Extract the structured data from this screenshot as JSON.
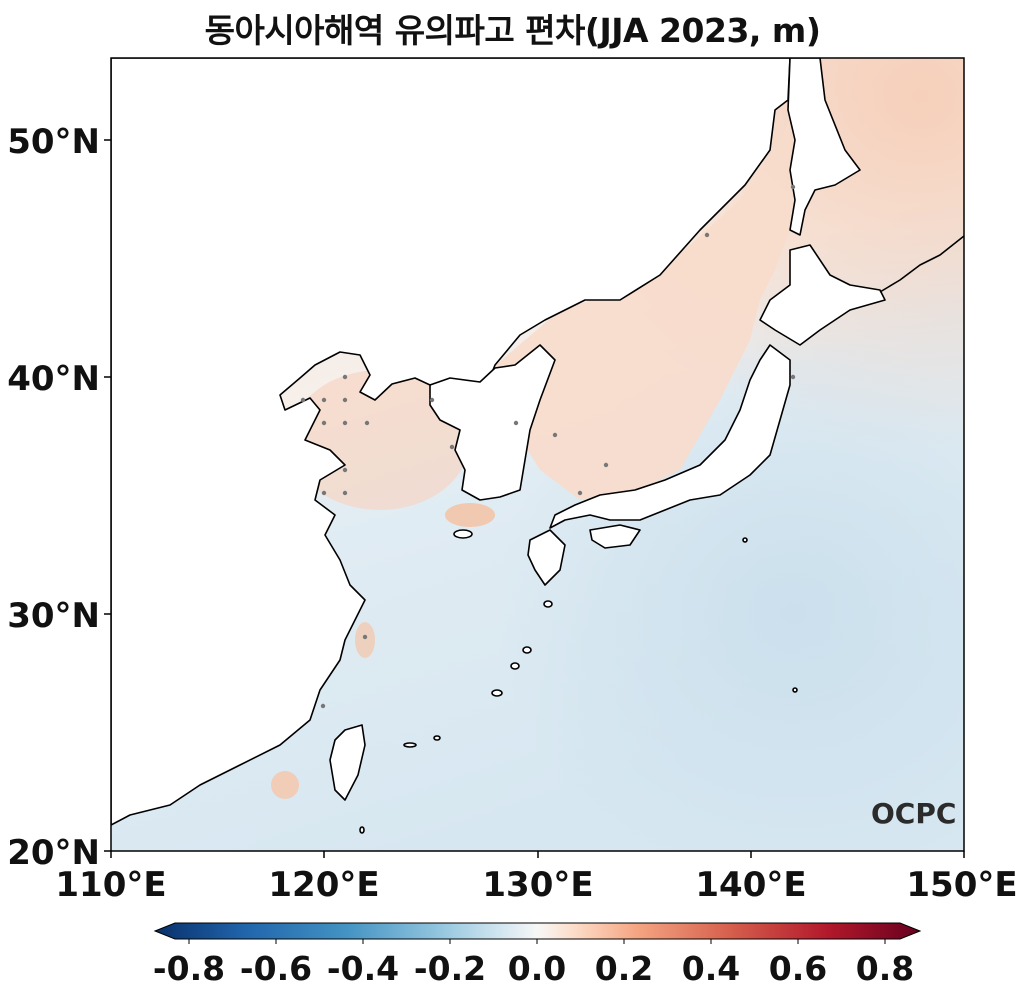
{
  "title": "동아시아해역 유의파고 편차(JJA 2023, m)",
  "map": {
    "lon_range": [
      110,
      150
    ],
    "lat_range": [
      20,
      53.5
    ],
    "x_ticks": [
      "110°E",
      "120°E",
      "130°E",
      "140°E",
      "150°E"
    ],
    "y_ticks": [
      "20°N",
      "30°N",
      "40°N",
      "50°N"
    ],
    "colormap": "RdBu_r",
    "anomaly_pattern": "positive (light red) north of ~35°N and in coastal marginal seas; weak negative (light blue) over the subtropical western Pacific south-east of Japan",
    "positive_color": "#f7d8c6",
    "negative_color": "#d5e6f1",
    "coastline_color": "#000000"
  },
  "colorbar": {
    "min": -0.8,
    "max": 0.8,
    "tick_labels": [
      "-0.8",
      "-0.6",
      "-0.4",
      "-0.2",
      "0.0",
      "0.2",
      "0.4",
      "0.6",
      "0.8"
    ],
    "extend": "both",
    "colors": [
      "#08306b",
      "#2166ac",
      "#4393c3",
      "#92c5de",
      "#d1e5f0",
      "#f7f7f7",
      "#fddbc7",
      "#f4a582",
      "#d6604d",
      "#b2182b",
      "#67001f"
    ]
  },
  "logo": {
    "text": "OCPC"
  }
}
